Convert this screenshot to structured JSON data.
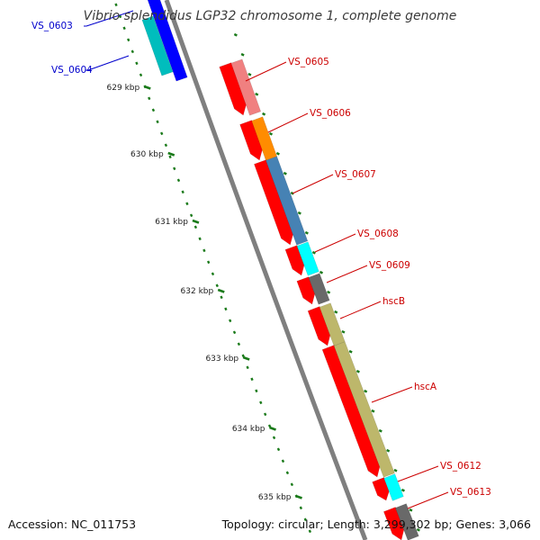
{
  "title": "Vibrio splendidus LGP32 chromosome 1, complete genome",
  "footer": {
    "accession": "Accession: NC_011753",
    "summary": "Topology: circular; Length: 3,299,302 bp; Genes: 3,066"
  },
  "colors": {
    "backbone": "#7f7f7f",
    "tick": "#1a7a1a",
    "cds": "#ff0000",
    "label_blue": "#0000cc",
    "label_red": "#cc0000"
  },
  "ticks": [
    {
      "label": "629 kbp"
    },
    {
      "label": "630 kbp"
    },
    {
      "label": "631 kbp"
    },
    {
      "label": "632 kbp"
    },
    {
      "label": "633 kbp"
    },
    {
      "label": "634 kbp"
    },
    {
      "label": "635 kbp"
    }
  ],
  "genes": [
    {
      "label": "VS_0603",
      "color": "#0000ff"
    },
    {
      "label": "VS_0604",
      "color": "#00bdbd"
    },
    {
      "label": "VS_0605",
      "color": "#f08080"
    },
    {
      "label": "VS_0606",
      "color": "#ff8c00"
    },
    {
      "label": "VS_0607",
      "color": "#4682b4"
    },
    {
      "label": "VS_0608",
      "color": "#00ffff"
    },
    {
      "label": "VS_0609",
      "color": "#696969"
    },
    {
      "label": "hscB",
      "color": "#bdb76b"
    },
    {
      "label": "hscA",
      "color": "#bdb76b"
    },
    {
      "label": "VS_0612",
      "color": "#00ffff"
    },
    {
      "label": "VS_0613",
      "color": "#696969"
    }
  ]
}
